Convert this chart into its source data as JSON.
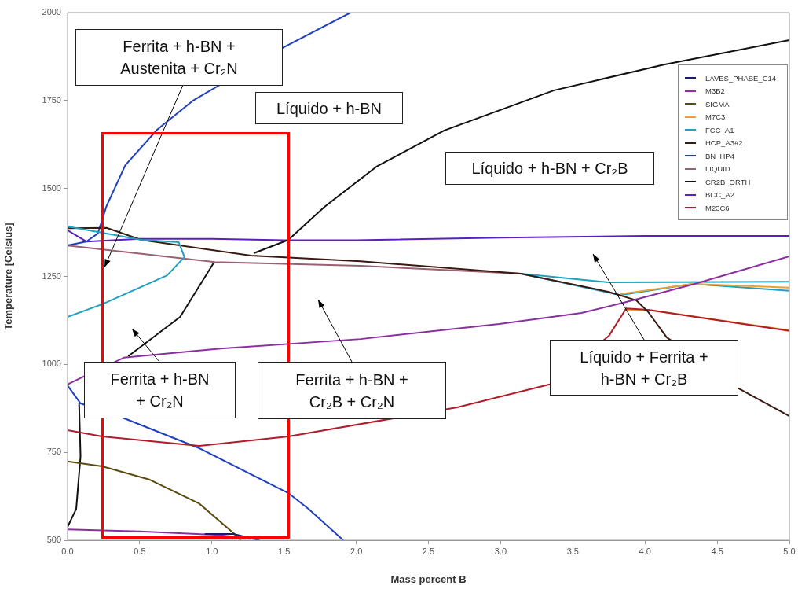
{
  "chart_data": {
    "type": "line",
    "xlabel": "Mass percent B",
    "ylabel": "Temperature [Celsius]",
    "xlim": [
      0,
      5
    ],
    "ylim": [
      500,
      2000
    ],
    "xticks": [
      {
        "value": 0,
        "label": "0.0"
      },
      {
        "value": 0.5,
        "label": "0.5"
      },
      {
        "value": 1,
        "label": "1.0"
      },
      {
        "value": 1.5,
        "label": "1.5"
      },
      {
        "value": 2,
        "label": "2.0"
      },
      {
        "value": 2.5,
        "label": "2.5"
      },
      {
        "value": 3,
        "label": "3.0"
      },
      {
        "value": 3.5,
        "label": "3.5"
      },
      {
        "value": 4,
        "label": "4.0"
      },
      {
        "value": 4.5,
        "label": "4.5"
      },
      {
        "value": 5,
        "label": "5.0"
      }
    ],
    "yticks": [
      500,
      750,
      1000,
      1250,
      1500,
      1750,
      2000
    ],
    "grid": false,
    "legend": "top right",
    "series": [
      {
        "name": "LAVES_PHASE_C14",
        "color": "#1a1a6e",
        "x": [
          0.95,
          1.15,
          1.33
        ],
        "values": [
          518,
          518,
          500
        ]
      },
      {
        "name": "M3B2",
        "color": "#8b2fa0",
        "x": [
          0,
          0.1,
          0.39,
          1.06,
          2.03,
          2.99,
          3.56,
          3.85,
          4.33,
          5
        ],
        "values": [
          943,
          963,
          1019,
          1045,
          1072,
          1115,
          1146,
          1175,
          1227,
          1307
        ]
      },
      {
        "name": "SIGMA",
        "color": "#5a4a10",
        "x": [
          0,
          0.24,
          0.57,
          0.91,
          1.15,
          1.2
        ],
        "values": [
          724,
          710,
          672,
          605,
          520,
          500
        ]
      },
      {
        "name": "M7C3",
        "color": "#f0a030",
        "x": [
          3.83,
          4.33,
          5
        ],
        "values": [
          1200,
          1229,
          1218
        ]
      },
      {
        "name": "FCC_A1",
        "color": "#20a0c0",
        "x": [
          0,
          0.51,
          0.77,
          0.81,
          0.69,
          0.24,
          0
        ],
        "values": [
          1392,
          1354,
          1347,
          1305,
          1253,
          1171,
          1135
        ]
      },
      {
        "name": "HCP_A3#2",
        "color": "#3a1a10",
        "x": [
          0,
          0.27,
          0.51,
          1.27,
          2.03,
          3.14,
          3.75,
          3.94,
          4.02,
          4.15,
          4.65,
          5
        ],
        "values": [
          1387,
          1388,
          1354,
          1309,
          1293,
          1258,
          1206,
          1182,
          1150,
          1077,
          931,
          853
        ]
      },
      {
        "name": "BN_HP4",
        "color": "#1f3fbf",
        "x": [
          0,
          0.13,
          0.21,
          0.27,
          0.4,
          0.62,
          0.87,
          1.5,
          1.96
        ],
        "values": [
          1338,
          1349,
          1372,
          1450,
          1566,
          1667,
          1750,
          1902,
          2000
        ]
      },
      {
        "name": "LIQUID",
        "color": "#9a6070",
        "x": [
          0,
          0.5,
          1.02,
          2.03,
          3.14
        ],
        "values": [
          1338,
          1315,
          1291,
          1280,
          1258
        ]
      },
      {
        "name": "CR2B_ORTH",
        "color": "#111111",
        "x": [
          1.29,
          1.53,
          1.78,
          2.14,
          2.61,
          3.37,
          4.13,
          5
        ],
        "values": [
          1316,
          1354,
          1448,
          1562,
          1665,
          1779,
          1852,
          1922
        ]
      },
      {
        "name": "BCC_A2",
        "color": "#5a1fbf",
        "x": [
          0,
          0.13,
          0.5,
          1,
          1.5,
          2,
          3,
          4,
          5
        ],
        "values": [
          1381,
          1349,
          1357,
          1357,
          1353,
          1353,
          1360,
          1365,
          1365
        ]
      },
      {
        "name": "M23C6",
        "color": "#b01c2a",
        "x": [
          0,
          0.24,
          0.91,
          1.53,
          2.7,
          3.34,
          3.75,
          3.87,
          4.02,
          5
        ],
        "values": [
          813,
          795,
          768,
          795,
          878,
          943,
          1081,
          1159,
          1155,
          1095
        ]
      },
      {
        "color": "#8b2fa0",
        "x": [
          0,
          0.5,
          1,
          1.3
        ],
        "values": [
          531,
          525,
          516,
          505
        ]
      },
      {
        "color": "#f0a030",
        "x": [
          3.87,
          4.02,
          5
        ],
        "values": [
          1155,
          1155,
          1097
        ]
      },
      {
        "color": "#20a0c0",
        "x": [
          3.14,
          3.75,
          5
        ],
        "values": [
          1258,
          1233,
          1235
        ]
      },
      {
        "color": "#20a0c0",
        "x": [
          3.14,
          3.83,
          4.33,
          5
        ],
        "values": [
          1258,
          1197,
          1229,
          1209
        ]
      },
      {
        "color": "#1f3fbf",
        "x": [
          0,
          0.09,
          0.39,
          0.91,
          1.53,
          1.67,
          1.91
        ],
        "values": [
          940,
          889,
          847,
          762,
          634,
          589,
          500
        ]
      },
      {
        "color": "#111111",
        "x": [
          1.01,
          0.78,
          0.42
        ],
        "values": [
          1287,
          1135,
          1023
        ]
      },
      {
        "color": "#111111",
        "x": [
          0.08,
          0.09,
          0.06,
          0
        ],
        "values": [
          889,
          739,
          589,
          538
        ]
      }
    ],
    "annotations": [
      "Ferrita + h-BN +\nAustenita + Cr₂N",
      "Líquido + h-BN",
      "Líquido + h-BN + Cr₂B",
      "Ferrita + h-BN\n+ Cr₂N",
      "Ferrita + h-BN +\nCr₂B + Cr₂N",
      "Líquido + Ferrita +\nh-BN + Cr₂B"
    ]
  }
}
